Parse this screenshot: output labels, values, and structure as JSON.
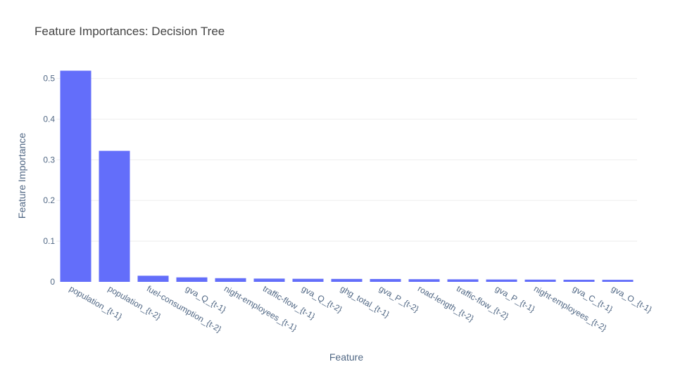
{
  "chart_data": {
    "type": "bar",
    "title": "Feature Importances: Decision Tree",
    "xlabel": "Feature",
    "ylabel": "Feature Importance",
    "ylim": [
      0,
      0.52
    ],
    "yticks": [
      0,
      0.1,
      0.2,
      0.3,
      0.4,
      0.5
    ],
    "ytick_labels": [
      "0",
      "0.1",
      "0.2",
      "0.3",
      "0.4",
      "0.5"
    ],
    "grid": true,
    "bar_color": "#636efa",
    "categories": [
      "population_{t-1}",
      "population_{t-2}",
      "fuel-consumption_{t-2}",
      "gva_Q_{t-1}",
      "night-employees_{t-1}",
      "traffic-flow_{t-1}",
      "gva_Q_{t-2}",
      "ghg_total_{t-1}",
      "gva_P_{t-2}",
      "road-length_{t-2}",
      "traffic-flow_{t-2}",
      "gva_P_{t-1}",
      "night-employees_{t-2}",
      "gva_C_{t-1}",
      "gva_O_{t-1}"
    ],
    "values": [
      0.519,
      0.322,
      0.015,
      0.011,
      0.009,
      0.008,
      0.0075,
      0.0072,
      0.007,
      0.0065,
      0.0062,
      0.0058,
      0.0055,
      0.0052,
      0.005
    ]
  }
}
